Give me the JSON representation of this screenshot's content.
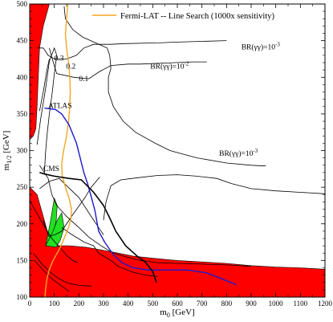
{
  "chart_data": {
    "type": "line",
    "xlabel": "m",
    "xlabel_sub": "0",
    "xlabel_unit": " [GeV]",
    "ylabel": "m",
    "ylabel_sub": "1/2",
    "ylabel_unit": " [GeV]",
    "xlim": [
      0,
      1200
    ],
    "ylim": [
      100,
      500
    ],
    "x_ticks": [
      0,
      100,
      200,
      300,
      400,
      500,
      600,
      700,
      800,
      900,
      1000,
      1100,
      1200
    ],
    "y_ticks": [
      100,
      150,
      200,
      250,
      300,
      350,
      400,
      450,
      500
    ],
    "grid": false,
    "legend": {
      "position": "top-right",
      "entries": [
        {
          "name": "Fermi-LAT -- Line Search (1000x sensitivity)",
          "color": "#f5a623"
        }
      ]
    },
    "colors": {
      "red_region": "#ff0000",
      "green_region": "#22e022",
      "atlas": "#1a1acc",
      "cms": "#000000",
      "fermi": "#f5a623",
      "contour": "#000000"
    },
    "series": [
      {
        "name": "Fermi-LAT -- Line Search (1000x sensitivity)",
        "color": "#f5a623",
        "points": [
          [
            155,
            500
          ],
          [
            150,
            480
          ],
          [
            145,
            460
          ],
          [
            150,
            440
          ],
          [
            158,
            420
          ],
          [
            163,
            400
          ],
          [
            165,
            380
          ],
          [
            163,
            360
          ],
          [
            158,
            340
          ],
          [
            150,
            320
          ],
          [
            138,
            300
          ],
          [
            130,
            282
          ],
          [
            132,
            266
          ],
          [
            145,
            250
          ],
          [
            160,
            235
          ],
          [
            170,
            220
          ],
          [
            168,
            208
          ],
          [
            158,
            195
          ],
          [
            140,
            180
          ],
          [
            120,
            165
          ],
          [
            95,
            150
          ],
          [
            80,
            138
          ],
          [
            70,
            125
          ],
          [
            65,
            112
          ],
          [
            62,
            100
          ]
        ]
      },
      {
        "name": "ATLAS",
        "color": "#1a1acc",
        "points": [
          [
            60,
            358
          ],
          [
            105,
            356
          ],
          [
            130,
            350
          ],
          [
            160,
            335
          ],
          [
            190,
            310
          ],
          [
            205,
            290
          ],
          [
            220,
            270
          ],
          [
            235,
            255
          ],
          [
            250,
            237
          ],
          [
            265,
            218
          ],
          [
            280,
            190
          ],
          [
            305,
            175
          ],
          [
            340,
            158
          ],
          [
            375,
            147
          ],
          [
            420,
            140
          ],
          [
            480,
            137
          ],
          [
            560,
            137
          ],
          [
            640,
            137
          ],
          [
            720,
            133
          ],
          [
            780,
            125
          ],
          [
            840,
            117
          ]
        ]
      },
      {
        "name": "CMS",
        "color": "#000000",
        "points": [
          [
            40,
            270
          ],
          [
            60,
            268
          ],
          [
            100,
            265
          ],
          [
            160,
            262
          ],
          [
            210,
            260
          ],
          [
            260,
            243
          ],
          [
            300,
            225
          ],
          [
            325,
            208
          ],
          [
            350,
            190
          ],
          [
            390,
            170
          ],
          [
            440,
            155
          ],
          [
            470,
            148
          ],
          [
            500,
            135
          ],
          [
            515,
            120
          ]
        ]
      }
    ],
    "contours": [
      {
        "points": [
          [
            30,
            440
          ],
          [
            55,
            440
          ],
          [
            75,
            430
          ],
          [
            100,
            425
          ],
          [
            150,
            425
          ],
          [
            190,
            430
          ],
          [
            220,
            440
          ],
          [
            260,
            445
          ],
          [
            330,
            445
          ],
          [
            385,
            446
          ],
          [
            525,
            447
          ],
          [
            600,
            448
          ],
          [
            700,
            449
          ],
          [
            800,
            450
          ]
        ]
      },
      {
        "points": [
          [
            80,
            440
          ],
          [
            90,
            427
          ],
          [
            100,
            416
          ],
          [
            110,
            405
          ],
          [
            180,
            400
          ],
          [
            240,
            398
          ],
          [
            285,
            408
          ],
          [
            330,
            416
          ],
          [
            400,
            418
          ],
          [
            450,
            418
          ],
          [
            520,
            419
          ],
          [
            590,
            420
          ],
          [
            660,
            421
          ],
          [
            720,
            421
          ]
        ]
      },
      {
        "points": [
          [
            140,
            497
          ],
          [
            145,
            480
          ],
          [
            175,
            465
          ],
          [
            215,
            455
          ],
          [
            315,
            440
          ],
          [
            325,
            430
          ],
          [
            330,
            412
          ],
          [
            320,
            400
          ],
          [
            320,
            380
          ],
          [
            340,
            360
          ],
          [
            380,
            340
          ],
          [
            430,
            325
          ],
          [
            510,
            310
          ],
          [
            570,
            300
          ],
          [
            680,
            290
          ],
          [
            800,
            283
          ],
          [
            900,
            280
          ],
          [
            960,
            279
          ]
        ]
      },
      {
        "points": [
          [
            300,
            205
          ],
          [
            310,
            230
          ],
          [
            330,
            252
          ],
          [
            370,
            260
          ],
          [
            440,
            263
          ],
          [
            520,
            266
          ],
          [
            600,
            267
          ],
          [
            680,
            265
          ],
          [
            760,
            262
          ],
          [
            820,
            255
          ],
          [
            900,
            248
          ],
          [
            1000,
            245
          ],
          [
            1100,
            243
          ],
          [
            1200,
            241
          ]
        ]
      },
      {
        "points": [
          [
            40,
            280
          ],
          [
            75,
            262
          ],
          [
            90,
            240
          ],
          [
            110,
            225
          ],
          [
            150,
            210
          ],
          [
            200,
            195
          ],
          [
            240,
            182
          ],
          [
            290,
            170
          ],
          [
            340,
            160
          ],
          [
            390,
            155
          ],
          [
            450,
            150
          ],
          [
            520,
            147
          ],
          [
            600,
            146
          ],
          [
            700,
            145
          ],
          [
            800,
            144
          ],
          [
            900,
            142
          ]
        ]
      },
      {
        "points": [
          [
            30,
            308
          ],
          [
            45,
            344
          ],
          [
            65,
            385
          ],
          [
            80,
            422
          ],
          [
            100,
            440
          ],
          [
            110,
            430
          ],
          [
            100,
            405
          ],
          [
            92,
            380
          ],
          [
            80,
            350
          ],
          [
            70,
            320
          ],
          [
            64,
            295
          ],
          [
            60,
            270
          ]
        ]
      },
      {
        "points": [
          [
            40,
            354
          ],
          [
            55,
            380
          ],
          [
            70,
            410
          ],
          [
            80,
            425
          ]
        ]
      },
      {
        "points": [
          [
            55,
            205
          ],
          [
            78,
            183
          ],
          [
            102,
            185
          ],
          [
            130,
            190
          ],
          [
            170,
            210
          ],
          [
            225,
            236
          ],
          [
            250,
            250
          ],
          [
            285,
            264
          ]
        ]
      },
      {
        "points": [
          [
            130,
            195
          ],
          [
            168,
            186
          ],
          [
            222,
            175
          ],
          [
            260,
            170
          ],
          [
            280,
            160
          ],
          [
            330,
            150
          ],
          [
            360,
            142
          ],
          [
            420,
            134
          ],
          [
            470,
            130
          ],
          [
            520,
            128
          ]
        ]
      },
      {
        "points": [
          [
            0,
            232
          ],
          [
            45,
            205
          ],
          [
            90,
            180
          ],
          [
            130,
            165
          ],
          [
            150,
            157
          ],
          [
            175,
            150
          ],
          [
            195,
            147
          ]
        ]
      },
      {
        "points": [
          [
            15,
            160
          ],
          [
            50,
            145
          ],
          [
            90,
            132
          ],
          [
            120,
            125
          ],
          [
            155,
            119
          ],
          [
            200,
            116
          ],
          [
            250,
            115
          ]
        ]
      },
      {
        "points": [
          [
            20,
            150
          ],
          [
            60,
            135
          ],
          [
            90,
            125
          ],
          [
            130,
            115
          ],
          [
            160,
            108
          ]
        ]
      },
      {
        "points": [
          [
            40,
            248
          ],
          [
            80,
            258
          ],
          [
            120,
            262
          ],
          [
            150,
            252
          ],
          [
            200,
            236
          ],
          [
            250,
            210
          ],
          [
            300,
            185
          ]
        ]
      }
    ],
    "annotations": [
      {
        "text": "0.3",
        "x": 100,
        "y": 423
      },
      {
        "text": "0.2",
        "x": 148,
        "y": 412
      },
      {
        "text": "0.1",
        "x": 200,
        "y": 395
      },
      {
        "text": "ATLAS",
        "x": 75,
        "y": 358
      },
      {
        "text": "CMS",
        "x": 55,
        "y": 272
      },
      {
        "text": "BR(γγ)=10",
        "sup": "-3",
        "x": 860,
        "y": 438
      },
      {
        "text": "BR(γγ)=10",
        "sup": "-2",
        "x": 490,
        "y": 412
      },
      {
        "text": "BR(γγ)=10",
        "sup": "-3",
        "x": 770,
        "y": 293
      }
    ],
    "red_regions": [
      [
        [
          0,
          500
        ],
        [
          80,
          500
        ],
        [
          55,
          470
        ],
        [
          40,
          440
        ],
        [
          35,
          400
        ],
        [
          30,
          360
        ],
        [
          25,
          330
        ],
        [
          15,
          320
        ],
        [
          0,
          315
        ]
      ],
      [
        [
          0,
          250
        ],
        [
          30,
          240
        ],
        [
          55,
          210
        ],
        [
          80,
          180
        ],
        [
          110,
          170
        ],
        [
          160,
          170
        ],
        [
          230,
          168
        ],
        [
          330,
          162
        ],
        [
          420,
          156
        ],
        [
          500,
          153
        ],
        [
          600,
          150
        ],
        [
          700,
          148
        ],
        [
          800,
          146
        ],
        [
          900,
          143
        ],
        [
          1000,
          141
        ],
        [
          1100,
          140
        ],
        [
          1200,
          138
        ],
        [
          1200,
          100
        ],
        [
          0,
          100
        ]
      ]
    ],
    "green_regions": [
      [
        [
          65,
          170
        ],
        [
          85,
          205
        ],
        [
          100,
          235
        ],
        [
          112,
          225
        ],
        [
          108,
          205
        ],
        [
          95,
          185
        ]
      ],
      [
        [
          65,
          170
        ],
        [
          108,
          168
        ],
        [
          125,
          178
        ],
        [
          140,
          195
        ],
        [
          130,
          215
        ],
        [
          112,
          205
        ],
        [
          95,
          190
        ]
      ]
    ]
  }
}
